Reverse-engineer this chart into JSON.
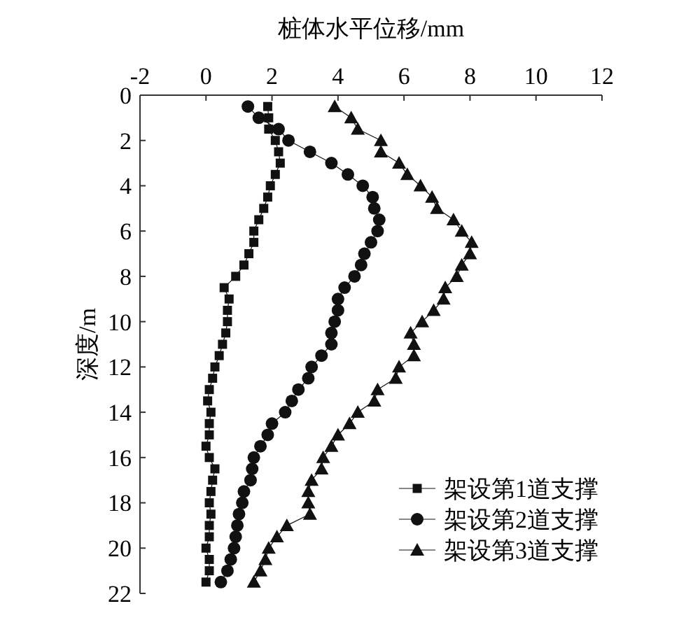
{
  "chart_data": {
    "type": "line",
    "xlabel": "桩体水平位移/mm",
    "ylabel": "深度/m",
    "xlim": [
      -2,
      12
    ],
    "xticks": [
      -2,
      0,
      2,
      4,
      6,
      8,
      10,
      12
    ],
    "ylim": [
      22,
      0
    ],
    "yticks": [
      0,
      2,
      4,
      6,
      8,
      10,
      12,
      14,
      16,
      18,
      20,
      22
    ],
    "grid": false,
    "legend": "bottom right",
    "series": [
      {
        "name": "架设第1道支撑",
        "color": "#111111",
        "marker": "square",
        "x": [
          1.87,
          1.9,
          1.9,
          2.1,
          2.2,
          2.25,
          2.1,
          1.95,
          1.87,
          1.75,
          1.6,
          1.45,
          1.45,
          1.3,
          1.15,
          0.9,
          0.55,
          0.7,
          0.65,
          0.65,
          0.6,
          0.5,
          0.4,
          0.27,
          0.2,
          0.1,
          0.05,
          0.15,
          0.1,
          0.1,
          0,
          0.1,
          0.27,
          0.2,
          0.15,
          0.1,
          0.15,
          0.1,
          0.1,
          0,
          0.1,
          0.1,
          0
        ],
        "values": [
          0.5,
          1,
          1.5,
          2,
          2.5,
          3,
          3.5,
          4,
          4.5,
          5,
          5.5,
          6,
          6.5,
          7,
          7.5,
          8,
          8.5,
          9,
          9.5,
          10,
          10.5,
          11,
          11.5,
          12,
          12.5,
          13,
          13.5,
          14,
          14.5,
          15,
          15.5,
          16,
          16.5,
          17,
          17.5,
          18,
          18.5,
          19,
          19.5,
          20,
          20.5,
          21,
          21.5
        ]
      },
      {
        "name": "架设第2道支撑",
        "color": "#111111",
        "marker": "circle",
        "x": [
          1.27,
          1.6,
          2.2,
          2.5,
          3.15,
          3.8,
          4.3,
          4.75,
          5.05,
          5.1,
          5.25,
          5.2,
          5.0,
          4.8,
          4.7,
          4.5,
          4.2,
          4.0,
          4.0,
          3.9,
          3.8,
          3.8,
          3.5,
          3.2,
          3.1,
          2.8,
          2.6,
          2.4,
          2.0,
          1.87,
          1.65,
          1.45,
          1.4,
          1.35,
          1.15,
          1.1,
          1.0,
          0.95,
          0.9,
          0.85,
          0.75,
          0.65,
          0.45
        ],
        "values": [
          0.5,
          1,
          1.5,
          2,
          2.5,
          3,
          3.5,
          4,
          4.5,
          5,
          5.5,
          6,
          6.5,
          7,
          7.5,
          8,
          8.5,
          9,
          9.5,
          10,
          10.5,
          11,
          11.5,
          12,
          12.5,
          13,
          13.5,
          14,
          14.5,
          15,
          15.5,
          16,
          16.5,
          17,
          17.5,
          18,
          18.5,
          19,
          19.5,
          20,
          20.5,
          21,
          21.5
        ]
      },
      {
        "name": "架设第3道支撑",
        "color": "#111111",
        "marker": "triangle",
        "x": [
          3.9,
          4.4,
          4.6,
          5.3,
          5.3,
          5.85,
          6.1,
          6.5,
          6.85,
          7.0,
          7.5,
          7.75,
          8.05,
          8.0,
          7.75,
          7.6,
          7.25,
          7.2,
          6.9,
          6.55,
          6.2,
          6.3,
          6.3,
          5.85,
          5.75,
          5.2,
          5.1,
          4.6,
          4.35,
          4.0,
          3.8,
          3.55,
          3.5,
          3.2,
          3.1,
          3.1,
          3.15,
          2.45,
          2.15,
          1.9,
          1.8,
          1.65,
          1.45
        ],
        "values": [
          0.5,
          1,
          1.5,
          2,
          2.5,
          3,
          3.5,
          4,
          4.5,
          5,
          5.5,
          6,
          6.5,
          7,
          7.5,
          8,
          8.5,
          9,
          9.5,
          10,
          10.5,
          11,
          11.5,
          12,
          12.5,
          13,
          13.5,
          14,
          14.5,
          15,
          15.5,
          16,
          16.5,
          17,
          17.5,
          18,
          18.5,
          19,
          19.5,
          20,
          20.5,
          21,
          21.5
        ]
      }
    ]
  }
}
